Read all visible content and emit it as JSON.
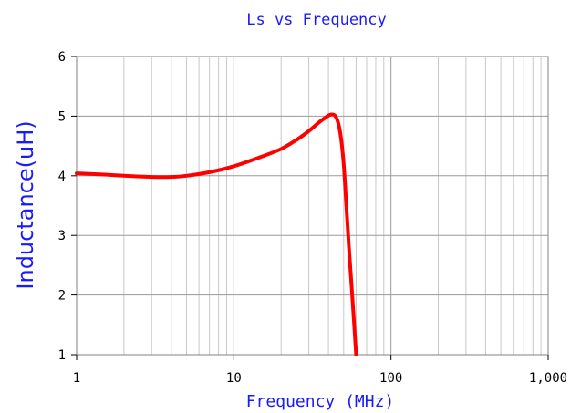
{
  "chart_data": {
    "type": "line",
    "title": "Ls vs Frequency",
    "xlabel": "Frequency (MHz)",
    "ylabel": "Inductance(uH)",
    "x_scale": "log",
    "xlim": [
      1,
      1000
    ],
    "ylim": [
      1,
      6
    ],
    "x_ticks": [
      1,
      10,
      100,
      1000
    ],
    "x_tick_labels": [
      "1",
      "10",
      "100",
      "1,000"
    ],
    "y_ticks": [
      1,
      2,
      3,
      4,
      5,
      6
    ],
    "y_tick_labels": [
      "1",
      "2",
      "3",
      "4",
      "5",
      "6"
    ],
    "grid": true,
    "series": [
      {
        "color": "#ff0000",
        "x": [
          1,
          1.5,
          2,
          3,
          4,
          5,
          7,
          10,
          15,
          20,
          25,
          30,
          35,
          40,
          42,
          44,
          46,
          48,
          50,
          52,
          54,
          56,
          58,
          60
        ],
        "y": [
          4.04,
          4.02,
          4.0,
          3.98,
          3.98,
          4.0,
          4.06,
          4.16,
          4.32,
          4.45,
          4.6,
          4.75,
          4.9,
          5.01,
          5.03,
          5.01,
          4.9,
          4.65,
          4.2,
          3.5,
          2.8,
          2.2,
          1.6,
          1.0
        ]
      }
    ]
  }
}
